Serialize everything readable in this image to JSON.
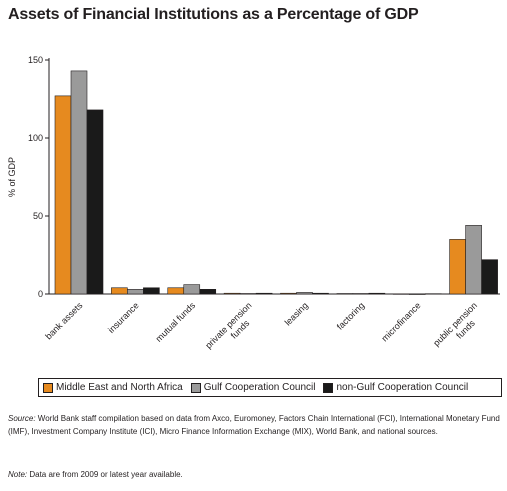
{
  "chart_data": {
    "type": "bar",
    "title": "Assets of Financial Institutions as a Percentage of GDP",
    "ylabel": "% of GDP",
    "xlabel": "",
    "ylim": [
      0,
      150
    ],
    "yticks": [
      0,
      50,
      100,
      150
    ],
    "grid": false,
    "legend_position": "bottom",
    "categories": [
      "bank assets",
      "insurance",
      "mutual funds",
      "private pension funds",
      "leasing",
      "factoring",
      "microfinance",
      "public pension funds"
    ],
    "series": [
      {
        "name": "Middle East and North Africa",
        "color": "#e68a1f",
        "values": [
          127,
          4,
          4,
          0.5,
          0.5,
          0.3,
          0.1,
          35
        ]
      },
      {
        "name": "Gulf Cooperation Council",
        "color": "#9a9a9a",
        "values": [
          143,
          3,
          6,
          0.3,
          1,
          0.3,
          0,
          44
        ]
      },
      {
        "name": "non-Gulf Cooperation Council",
        "color": "#1a1a1a",
        "values": [
          118,
          4,
          3,
          0.5,
          0.5,
          0.5,
          0.2,
          22
        ]
      }
    ]
  },
  "source_label": "Source:",
  "source_text": " World Bank staff compilation based on data from Axco, Euromoney, Factors Chain International (FCI), International Monetary Fund (IMF), Investment Company Institute (ICI), Micro Finance Information Exchange (MIX), World Bank, and national sources.",
  "note_label": "Note:",
  "note_text": " Data are from 2009 or latest year available."
}
